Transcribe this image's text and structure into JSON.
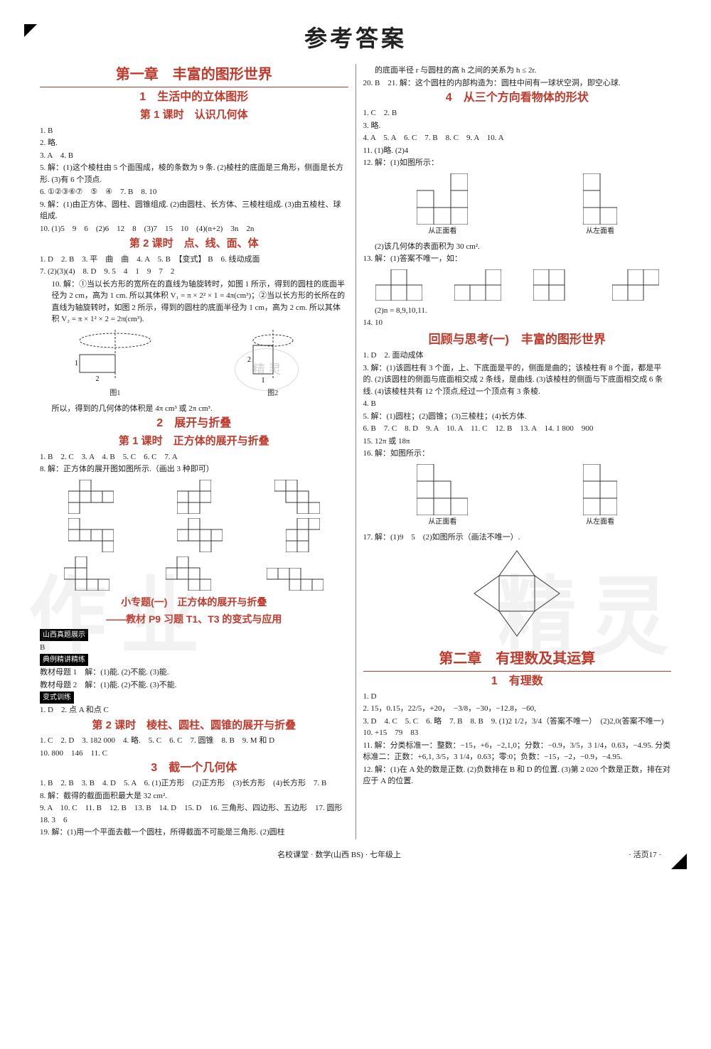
{
  "page": {
    "title": "参考答案",
    "footer_center": "名校课堂 · 数学(山西 BS) · 七年级上",
    "footer_right": "· 活页17 ·"
  },
  "watermarks": {
    "left": "作业",
    "right": "精灵",
    "stamp": "精 灵"
  },
  "chapters": {
    "ch1": {
      "title": "第一章　丰富的图形世界",
      "s1": {
        "title": "1　生活中的立体图形",
        "l1": {
          "title": "第 1 课时　认识几何体",
          "lines": [
            "1. B",
            "2. 略.",
            "3. A　4. B",
            "5. 解：(1)这个棱柱由 5 个面围成，棱的条数为 9 条. (2)棱柱的底面是三角形，侧面是长方形. (3)有 6 个顶点.",
            "6. ①②③⑥⑦　⑤　④　7. B　8. 10",
            "9. 解：(1)由正方体、圆柱、圆锥组成. (2)由圆柱、长方体、三棱柱组成. (3)由五棱柱、球组成.",
            "10. (1)5　9　6　(2)6　12　8　(3)7　15　10　(4)(n+2)　3n　2n"
          ]
        },
        "l2": {
          "title": "第 2 课时　点、线、面、体",
          "lines": [
            "1. D　2. B　3. 平　曲　曲　4. A　5. B　【变式】 B　6. 线动成面",
            "7. (2)(3)(4)　8. D　9. 5　4　1　9　7　2",
            "10. 解：①当以长方形的宽所在的直线为轴旋转时，如图 1 所示，得到的圆柱的底面半径为 2 cm，高为 1 cm. 所以其体积 V₁ = π × 2² × 1 = 4π(cm³)；②当以长方形的长所在的直线为轴旋转时，如图 2 所示，得到的圆柱的底面半径为 1 cm，高为 2 cm. 所以其体积 V₂ = π × 1² × 2 = 2π(cm³)."
          ],
          "fig1_label": "图1",
          "fig2_label": "图2",
          "fig_axis_2a": "2",
          "fig_axis_2b": "2",
          "fig_axis_1a": "1",
          "fig_axis_1b": "1",
          "conclusion": "所以，得到的几何体的体积是 4π cm³ 或 2π cm³."
        }
      },
      "s2": {
        "title": "2　展开与折叠",
        "l1": {
          "title": "第 1 课时　正方体的展开与折叠",
          "lines": [
            "1. B　2. C　3. A　4. B　5. C　6. C　7. A",
            "8. 解：正方体的展开图如图所示.（画出 3 种即可）"
          ]
        },
        "topic": {
          "title1": "小专题(一)　正方体的展开与折叠",
          "title2": "——教材 P9 习题 T1、T3 的变式与应用",
          "tag1": "山西真题展示",
          "tag1_ans": "B",
          "tag2": "典例精讲精练",
          "m1": "教材母题 1　解：(1)能. (2)不能. (3)能.",
          "m2": "教材母题 2　解：(1)能. (2)不能. (3)不能.",
          "tag3": "变式训练",
          "vx": "1. D　2. 点 A 和点 C"
        },
        "l2": {
          "title": "第 2 课时　棱柱、圆柱、圆锥的展开与折叠",
          "lines": [
            "1. C　2. D　3. 182 000　4. 略.　5. C　6. C　7. 圆锥　8. B　9. M 和 D",
            "10. 800　146　11. C"
          ]
        }
      },
      "s3": {
        "title": "3　截一个几何体",
        "lines": [
          "1. B　2. B　3. B　4. D　5. A　6. (1)正方形　(2)正方形　(3)长方形　(4)长方形　7. B",
          "8. 解：截得的截面面积最大是 32 cm².",
          "9. A　10. C　11. B　12. B　13. B　14. D　15. D　16. 三角形、四边形、五边形　17. 圆形　18. 3　6",
          "19. 解：(1)用一个平面去截一个圆柱，所得截面不可能是三角形. (2)圆柱"
        ],
        "cont": "的底面半径 r 与圆柱的高 h 之间的关系为 h ≤ 2r.",
        "line20": "20. B　21. 解：这个圆柱的内部构造为：圆柱中间有一球状空洞，即空心球."
      },
      "s4": {
        "title": "4　从三个方向看物体的形状",
        "lines_a": [
          "1. C　2. B",
          "3. 略.",
          "4. A　5. A　6. C　7. B　8. C　9. A　10. A",
          "11. (1)略. (2)4",
          "12. 解：(1)如图所示："
        ],
        "view_front": "从正面看",
        "view_left": "从左面看",
        "line12b": "(2)该几何体的表面积为 30 cm².",
        "line13a": "13. 解：(1)答案不唯一，如：",
        "line13b": "(2)n = 8,9,10,11.",
        "line14": "14. 10"
      },
      "review": {
        "title": "回顾与思考(一)　丰富的图形世界",
        "lines": [
          "1. D　2. 面动成体",
          "3. 解：(1)该圆柱有 3 个面，上、下底面是平的，侧面是曲的；该棱柱有 8 个面，都是平的. (2)该圆柱的侧面与底面相交成 2 条线，是曲线. (3)该棱柱的侧面与下底面相交成 6 条线. (4)该棱柱共有 12 个顶点,经过一个顶点有 3 条棱.",
          "4. B",
          "5. 解：(1)圆柱；(2)圆锥；(3)三棱柱；(4)长方体.",
          "6. B　7. C　8. D　9. A　10. A　11. C　12. B　13. A　14. 1 800　900",
          "15. 12π 或 18π",
          "16. 解：如图所示："
        ],
        "line17": "17. 解：(1)9　5　(2)如图所示（画法不唯一）."
      }
    },
    "ch2": {
      "title": "第二章　有理数及其运算",
      "s1": {
        "title": "1　有理数",
        "lines": [
          "1. D",
          "2. 15，0.15，22/5，+20，　−3/8，−30，−12.8，−60,",
          "3. D　4. C　5. C　6. 略　7. B　8. B　9. (1)2 1/2，3/4（答案不唯一）　(2)2,0(答案不唯一)　10. +15　79　83",
          "11. 解：分类标准一：整数：−15，+6，−2,1,0；分数：−0.9，3/5，3 1/4，0.63，−4.95. 分类标准二：正数：+6,1, 3/5，3 1/4，0.63；零:0；负数：−15，−2，−0.9，−4.95.",
          "12. 解：(1)在 A 处的数是正数. (2)负数排在 B 和 D 的位置. (3)第 2 020 个数是正数，排在对应于 A 的位置."
        ]
      }
    }
  },
  "nets": {
    "row1": [
      [
        [
          0,
          1
        ],
        [
          1,
          0
        ],
        [
          1,
          1
        ],
        [
          1,
          2
        ],
        [
          1,
          3
        ],
        [
          2,
          0
        ]
      ],
      [
        [
          0,
          2
        ],
        [
          1,
          0
        ],
        [
          1,
          1
        ],
        [
          1,
          2
        ],
        [
          2,
          0
        ],
        [
          2,
          1
        ]
      ],
      [
        [
          0,
          0
        ],
        [
          0,
          1
        ],
        [
          1,
          1
        ],
        [
          1,
          2
        ],
        [
          2,
          2
        ],
        [
          2,
          3
        ]
      ]
    ],
    "row2": [
      [
        [
          0,
          0
        ],
        [
          1,
          0
        ],
        [
          1,
          1
        ],
        [
          1,
          2
        ],
        [
          1,
          3
        ],
        [
          2,
          3
        ]
      ],
      [
        [
          0,
          1
        ],
        [
          1,
          0
        ],
        [
          1,
          1
        ],
        [
          1,
          2
        ],
        [
          1,
          3
        ],
        [
          2,
          2
        ]
      ],
      [
        [
          0,
          1
        ],
        [
          0,
          2
        ],
        [
          1,
          0
        ],
        [
          1,
          1
        ],
        [
          2,
          0
        ],
        [
          2,
          1
        ]
      ]
    ],
    "row3": [
      [
        [
          0,
          1
        ],
        [
          1,
          0
        ],
        [
          1,
          1
        ],
        [
          2,
          1
        ],
        [
          2,
          2
        ],
        [
          2,
          3
        ]
      ],
      [
        [
          0,
          1
        ],
        [
          1,
          0
        ],
        [
          1,
          1
        ],
        [
          1,
          2
        ],
        [
          2,
          2
        ],
        [
          2,
          3
        ]
      ],
      [
        [
          0,
          0
        ],
        [
          0,
          1
        ],
        [
          0,
          2
        ],
        [
          1,
          2
        ],
        [
          1,
          3
        ],
        [
          1,
          4
        ]
      ]
    ]
  },
  "views": {
    "q12_front": [
      [
        2,
        0
      ],
      [
        2,
        1
      ],
      [
        2,
        2
      ],
      [
        1,
        0
      ],
      [
        1,
        2
      ],
      [
        0,
        2
      ]
    ],
    "q12_left": [
      [
        2,
        0
      ],
      [
        2,
        1
      ],
      [
        1,
        0
      ],
      [
        0,
        0
      ]
    ],
    "q13": [
      [
        [
          1,
          0
        ],
        [
          1,
          1
        ],
        [
          1,
          2
        ],
        [
          0,
          1
        ]
      ],
      [
        [
          1,
          0
        ],
        [
          1,
          1
        ],
        [
          1,
          2
        ],
        [
          0,
          2
        ]
      ],
      [
        [
          1,
          0
        ],
        [
          1,
          1
        ],
        [
          0,
          0
        ],
        [
          0,
          1
        ]
      ],
      [
        [
          1,
          0
        ],
        [
          1,
          1
        ],
        [
          0,
          1
        ],
        [
          0,
          2
        ]
      ]
    ],
    "q16_front": [
      [
        2,
        0
      ],
      [
        2,
        1
      ],
      [
        2,
        2
      ],
      [
        1,
        0
      ],
      [
        1,
        1
      ],
      [
        0,
        0
      ]
    ],
    "q16_left": [
      [
        2,
        0
      ],
      [
        2,
        1
      ],
      [
        1,
        0
      ],
      [
        1,
        1
      ],
      [
        0,
        0
      ]
    ]
  },
  "colors": {
    "accent": "#c0392b",
    "text": "#222222",
    "line": "#333333",
    "watermark": "rgba(150,150,150,0.12)"
  }
}
